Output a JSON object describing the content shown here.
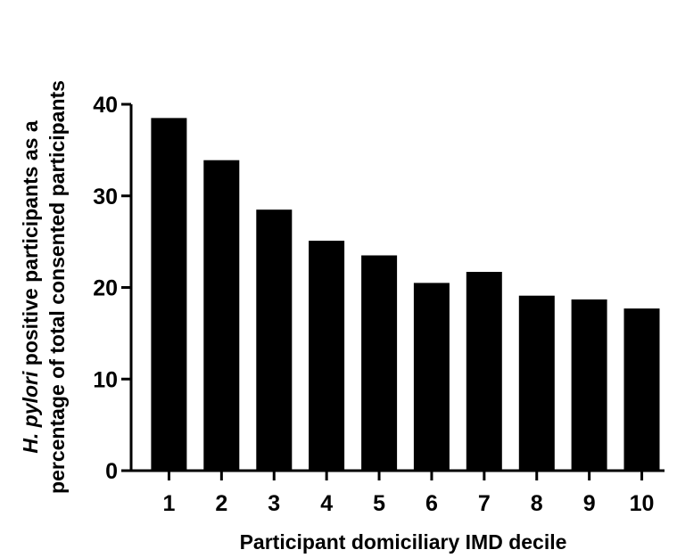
{
  "chart_data": {
    "type": "bar",
    "categories": [
      "1",
      "2",
      "3",
      "4",
      "5",
      "6",
      "7",
      "8",
      "9",
      "10"
    ],
    "values": [
      38.5,
      33.9,
      28.5,
      25.1,
      23.5,
      20.5,
      21.7,
      19.1,
      18.7,
      17.7
    ],
    "title": "",
    "xlabel": "Participant domiciliary IMD decile",
    "ylabel_italic": "H. pylori",
    "ylabel_line1": " positive participants as a",
    "ylabel_line2": "percentage of total consented participants",
    "ylim": [
      0,
      40
    ],
    "yticks": [
      "0",
      "10",
      "20",
      "30",
      "40"
    ],
    "grid": false,
    "bar_color": "#000000"
  }
}
